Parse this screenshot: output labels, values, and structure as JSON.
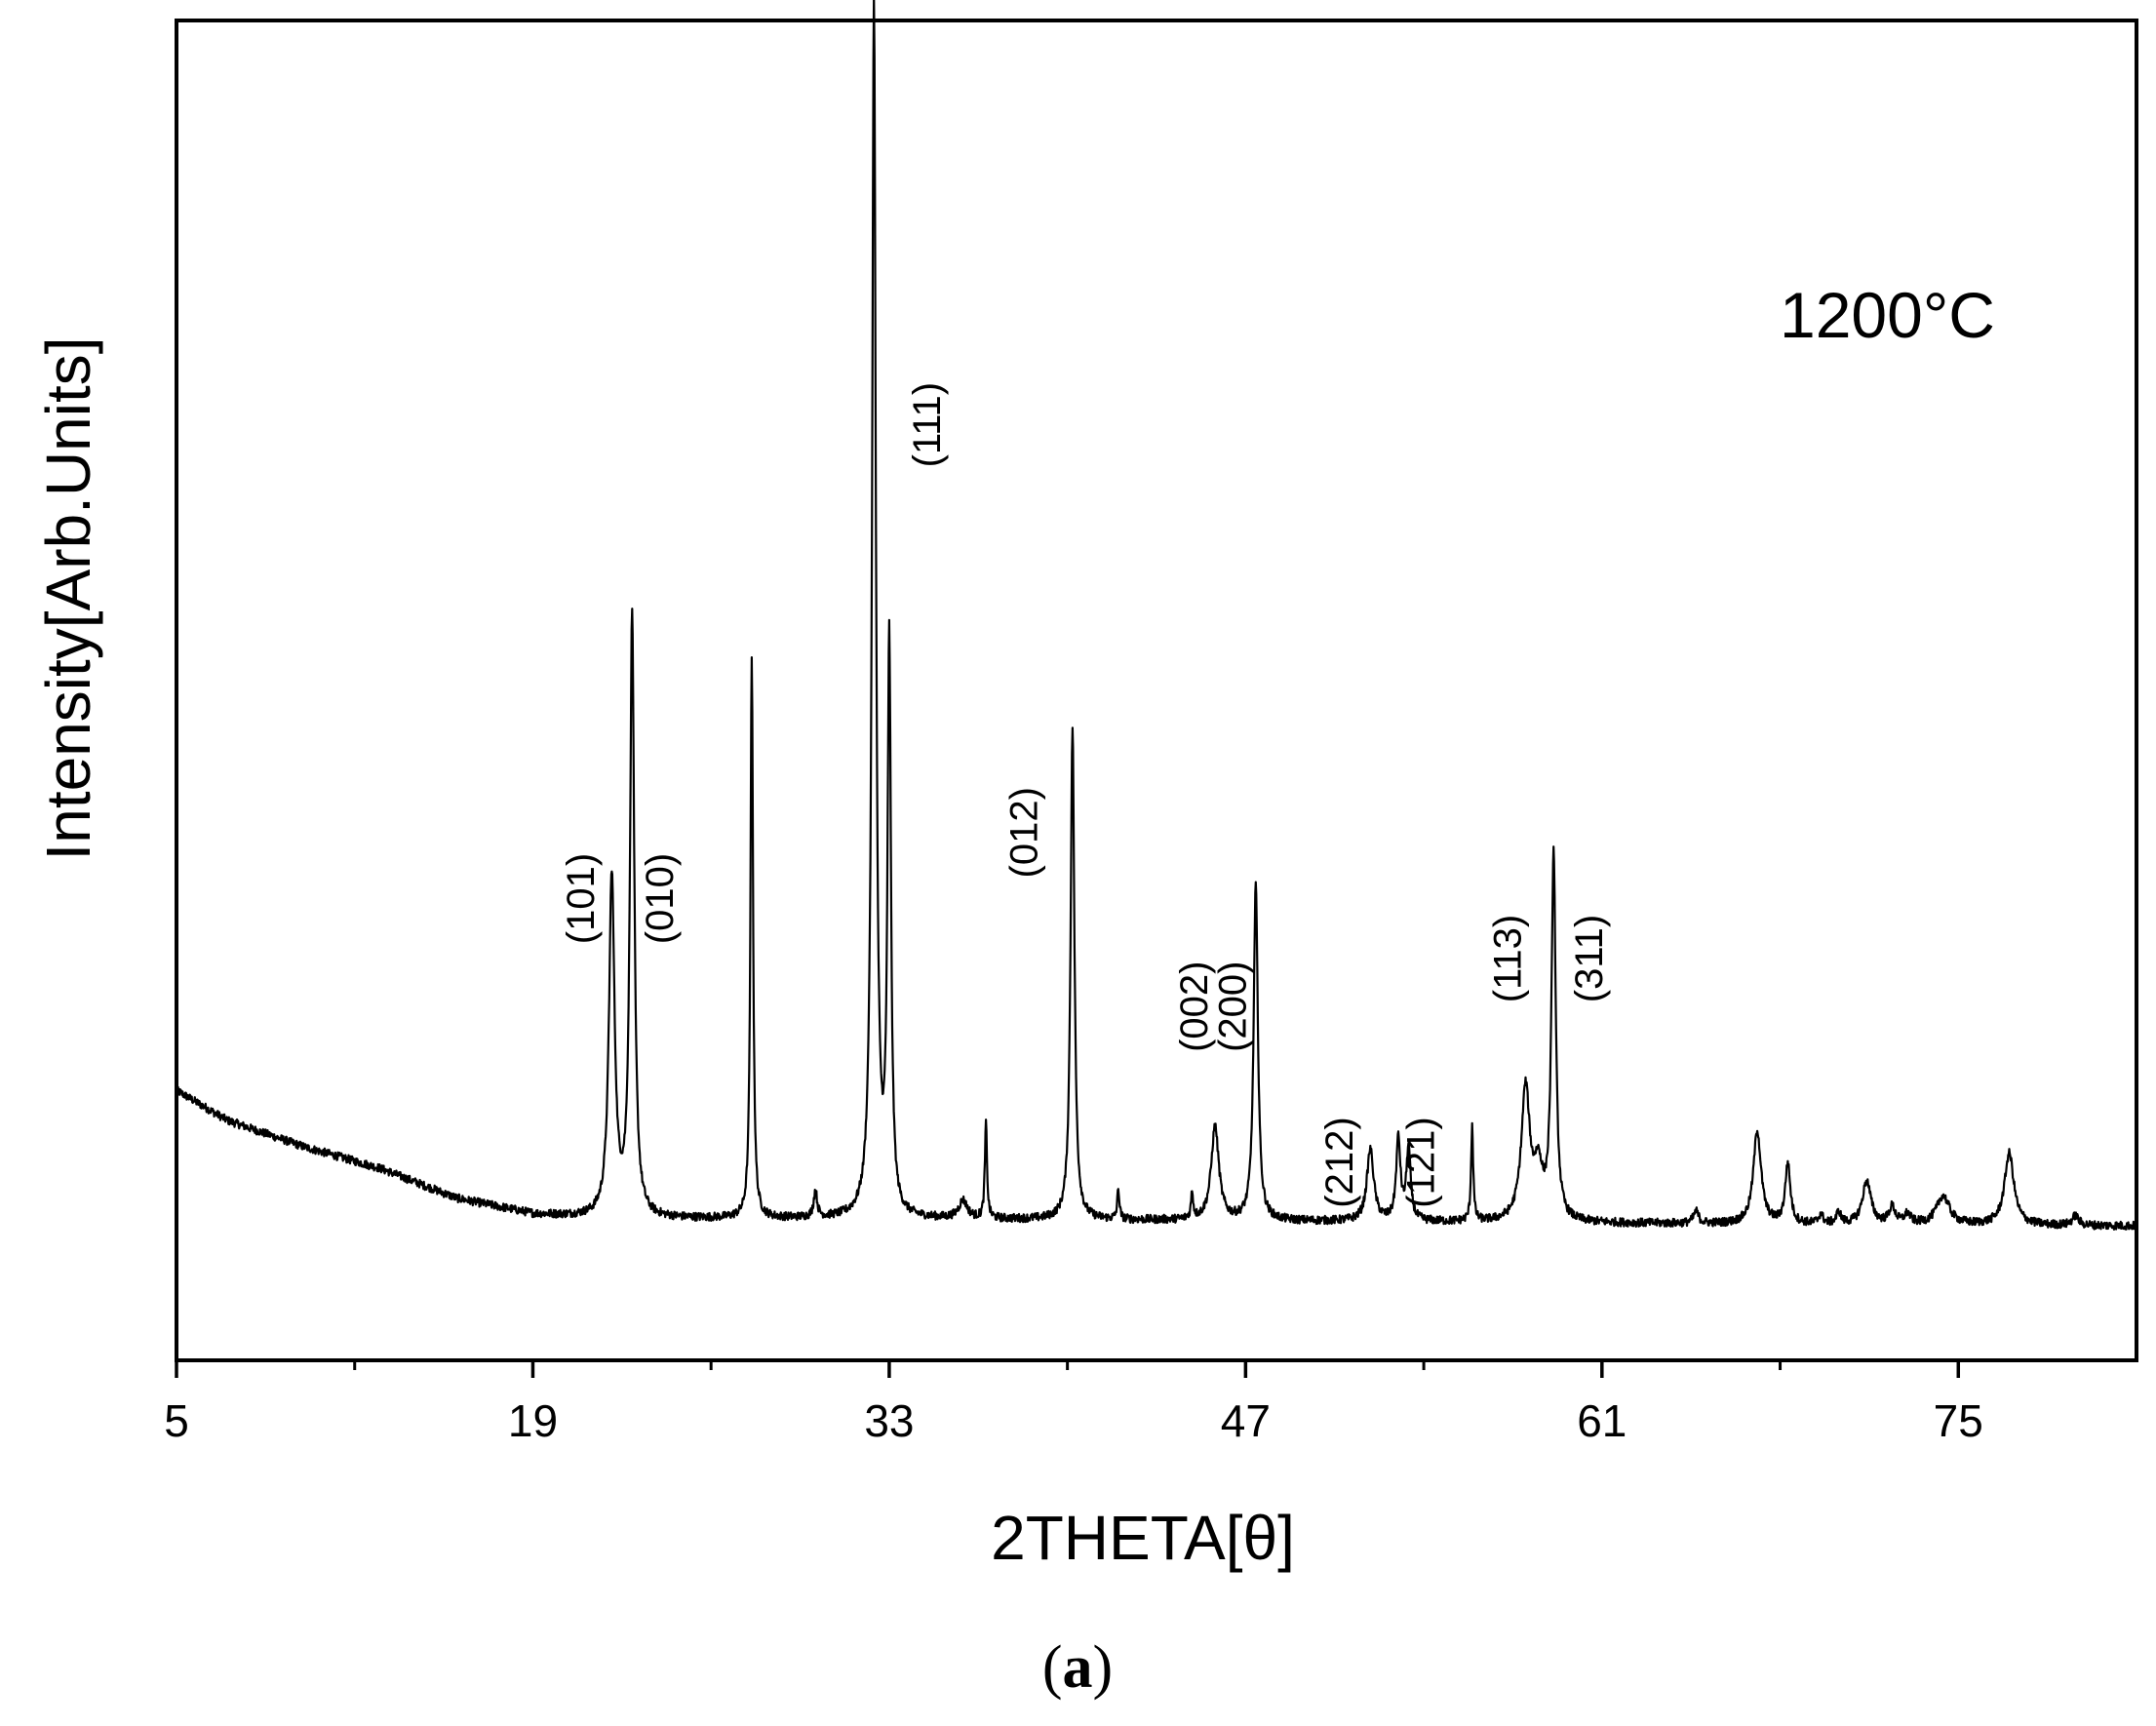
{
  "chart_data": {
    "type": "line",
    "xlabel": "2THETA[θ]",
    "ylabel": "Intensity[Arb.Units]",
    "xlim": [
      5,
      82
    ],
    "ylim": [
      0,
      1000
    ],
    "x_ticks": [
      5,
      19,
      33,
      47,
      61,
      75
    ],
    "x_minor_ticks": [
      12,
      26,
      40,
      54,
      68
    ],
    "annotation": "1200°C",
    "panel_label": {
      "open": "(",
      "letter": "a",
      "close": ")"
    },
    "series": [
      {
        "values_description": "XRD pattern",
        "baseline_points": [
          [
            5,
            225
          ],
          [
            7,
            200
          ],
          [
            10,
            178
          ],
          [
            13,
            160
          ],
          [
            16,
            135
          ],
          [
            19,
            122
          ],
          [
            22,
            118
          ],
          [
            30,
            118
          ],
          [
            40,
            117
          ],
          [
            55,
            115
          ],
          [
            70,
            113
          ],
          [
            82,
            112
          ]
        ],
        "peaks": [
          {
            "x": 22.1,
            "y": 285,
            "w": 0.13
          },
          {
            "x": 22.9,
            "y": 500,
            "w": 0.1
          },
          {
            "x": 27.6,
            "y": 470,
            "w": 0.06
          },
          {
            "x": 30.1,
            "y": 22,
            "w": 0.08
          },
          {
            "x": 32.4,
            "y": 1010,
            "w": 0.09
          },
          {
            "x": 33.0,
            "y": 475,
            "w": 0.08
          },
          {
            "x": 35.9,
            "y": 15,
            "w": 0.2
          },
          {
            "x": 36.8,
            "y": 80,
            "w": 0.05
          },
          {
            "x": 40.2,
            "y": 410,
            "w": 0.09
          },
          {
            "x": 42.0,
            "y": 25,
            "w": 0.05
          },
          {
            "x": 44.9,
            "y": 22,
            "w": 0.05
          },
          {
            "x": 45.8,
            "y": 78,
            "w": 0.18
          },
          {
            "x": 47.4,
            "y": 280,
            "w": 0.1
          },
          {
            "x": 51.9,
            "y": 60,
            "w": 0.16
          },
          {
            "x": 53.0,
            "y": 68,
            "w": 0.1
          },
          {
            "x": 53.4,
            "y": 60,
            "w": 0.1
          },
          {
            "x": 55.9,
            "y": 80,
            "w": 0.05
          },
          {
            "x": 58.0,
            "y": 110,
            "w": 0.2
          },
          {
            "x": 58.5,
            "y": 40,
            "w": 0.2
          },
          {
            "x": 59.1,
            "y": 305,
            "w": 0.1
          },
          {
            "x": 64.7,
            "y": 10,
            "w": 0.12
          },
          {
            "x": 67.1,
            "y": 78,
            "w": 0.18
          },
          {
            "x": 68.3,
            "y": 50,
            "w": 0.12
          },
          {
            "x": 69.6,
            "y": 8,
            "w": 0.1
          },
          {
            "x": 70.3,
            "y": 10,
            "w": 0.1
          },
          {
            "x": 71.4,
            "y": 36,
            "w": 0.2
          },
          {
            "x": 72.4,
            "y": 14,
            "w": 0.15
          },
          {
            "x": 73.0,
            "y": 8,
            "w": 0.15
          },
          {
            "x": 74.4,
            "y": 24,
            "w": 0.3
          },
          {
            "x": 77.0,
            "y": 60,
            "w": 0.22
          },
          {
            "x": 79.6,
            "y": 8,
            "w": 0.15
          }
        ]
      }
    ],
    "peak_labels": [
      {
        "text": "(101)",
        "x": 21.4,
        "y": 385
      },
      {
        "text": "(010)",
        "x": 24.5,
        "y": 385
      },
      {
        "text": "(111)",
        "x": 35.0,
        "y": 780
      },
      {
        "text": "(012)",
        "x": 38.8,
        "y": 440
      },
      {
        "text": "(002)",
        "x": 45.5,
        "y": 295
      },
      {
        "text": "(200)",
        "x": 47.0,
        "y": 295
      },
      {
        "text": "(212)",
        "x": 51.2,
        "y": 165
      },
      {
        "text": "(121)",
        "x": 54.4,
        "y": 165
      },
      {
        "text": "(113)",
        "x": 57.8,
        "y": 335
      },
      {
        "text": "(311)",
        "x": 61.0,
        "y": 335
      }
    ]
  }
}
